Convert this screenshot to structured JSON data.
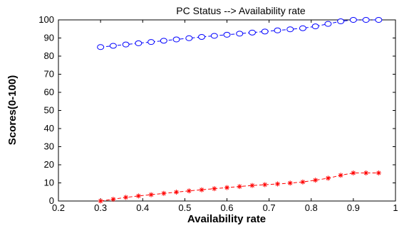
{
  "chart_data": {
    "type": "line",
    "title": "PC Status --> Availability rate",
    "xlabel": "Availability rate",
    "ylabel": "Scores(0-100)",
    "xlim": [
      0.2,
      1.0
    ],
    "ylim": [
      0,
      100
    ],
    "x_ticks": [
      "0.2",
      "0.3",
      "0.4",
      "0.5",
      "0.6",
      "0.7",
      "0.8",
      "0.9",
      "1"
    ],
    "y_ticks": [
      "0",
      "10",
      "20",
      "30",
      "40",
      "50",
      "60",
      "70",
      "80",
      "90",
      "100"
    ],
    "grid": false,
    "x": [
      0.3,
      0.33,
      0.36,
      0.39,
      0.42,
      0.45,
      0.48,
      0.51,
      0.54,
      0.57,
      0.6,
      0.63,
      0.66,
      0.69,
      0.72,
      0.75,
      0.78,
      0.81,
      0.84,
      0.87,
      0.9,
      0.93,
      0.96
    ],
    "series": [
      {
        "color": "#0000ff",
        "marker": "circle",
        "line_style": "dashed",
        "values": [
          85,
          85.7,
          86.4,
          87.1,
          87.8,
          88.5,
          89.2,
          89.9,
          90.6,
          91.2,
          91.8,
          92.4,
          93.0,
          93.6,
          94.2,
          94.8,
          95.4,
          96.4,
          97.8,
          99.2,
          100,
          100,
          100
        ]
      },
      {
        "color": "#ff0000",
        "marker": "star",
        "line_style": "dashed",
        "values": [
          0,
          1,
          2,
          2.8,
          3.5,
          4.2,
          4.9,
          5.6,
          6.2,
          6.8,
          7.4,
          8.0,
          8.6,
          9.0,
          9.4,
          9.9,
          10.5,
          11.5,
          12.6,
          14.2,
          15.5,
          15.5,
          15.5
        ]
      }
    ]
  }
}
